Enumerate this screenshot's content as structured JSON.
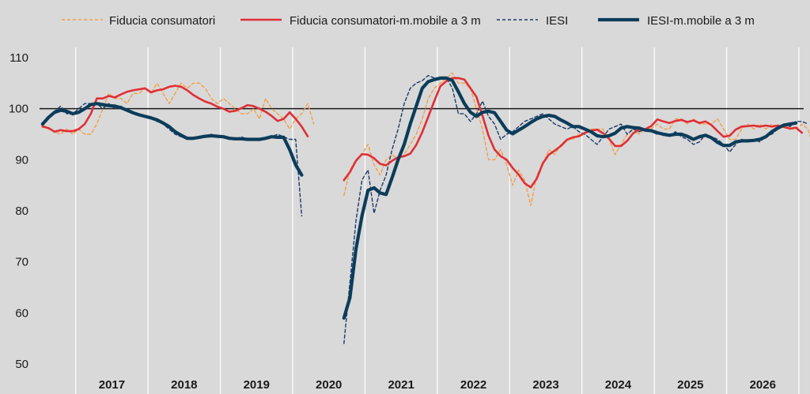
{
  "chart_data": {
    "type": "line",
    "title": "",
    "xlabel": "",
    "ylabel": "",
    "ylim": [
      50,
      112
    ],
    "yticks": [
      50,
      60,
      70,
      80,
      90,
      100,
      110
    ],
    "x_start": "2016-07",
    "x_end": "2026-12",
    "year_labels": [
      "2017",
      "2018",
      "2019",
      "2020",
      "2021",
      "2022",
      "2023",
      "2024",
      "2025",
      "2026"
    ],
    "reference_line": 100,
    "grid": "vertical year separators",
    "legend_position": "top",
    "colors": {
      "background": "#d9d9d9",
      "grid": "#ffffff",
      "fiducia": "#f0a04b",
      "fiducia_mm": "#e02f36",
      "iesi": "#1b3a6b",
      "iesi_mm": "#0c3c5a",
      "reference": "#1a1a1a"
    },
    "series": [
      {
        "name": "Fiducia consumatori",
        "style": "dashed-thin",
        "start": "2016-07",
        "values": [
          97,
          96,
          95.5,
          95,
          96,
          95,
          96,
          95,
          95,
          97,
          100,
          103,
          102,
          102,
          101,
          103,
          103,
          104,
          103,
          105,
          103,
          101,
          103,
          105,
          104,
          105,
          105,
          104,
          102,
          101,
          102,
          101,
          100,
          99,
          99,
          100,
          98,
          102,
          100,
          99,
          98,
          96,
          98,
          99,
          101,
          97,
          null,
          null,
          null,
          null,
          83,
          88,
          90,
          91,
          93,
          89,
          87,
          90,
          91,
          90,
          91,
          93,
          95,
          98,
          102,
          104,
          105,
          106,
          107,
          105,
          105,
          104,
          100,
          96,
          90,
          90,
          92,
          89,
          85,
          88,
          86,
          81,
          87,
          89,
          92,
          91,
          93,
          94,
          94,
          95,
          95,
          96,
          96,
          96,
          94,
          91,
          93,
          95,
          96,
          95,
          96,
          96,
          97,
          96,
          96,
          98,
          98,
          97,
          98,
          97,
          97,
          97,
          98,
          96,
          94,
          94,
          96,
          97,
          96,
          97,
          96,
          97,
          96,
          97,
          96,
          96,
          97,
          96,
          92
        ]
      },
      {
        "name": "Fiducia consumatori-m.mobile a 3 m",
        "style": "solid-medium",
        "start": "2016-07",
        "values": [
          96.5,
          96.2,
          95.5,
          95.8,
          95.6,
          95.6,
          96,
          97,
          99,
          102,
          102,
          102.5,
          102.2,
          102.8,
          103.3,
          103.6,
          103.8,
          104,
          103.2,
          103.6,
          103.8,
          104.3,
          104.5,
          104.3,
          103.6,
          102.7,
          102,
          101.4,
          101,
          100.4,
          100,
          99.4,
          99.6,
          100.1,
          100.7,
          100.5,
          100,
          99.4,
          98.6,
          97.6,
          98,
          99.3,
          98,
          96.5,
          94.6,
          null,
          null,
          null,
          null,
          null,
          86,
          87.6,
          89.8,
          91.1,
          91,
          90.3,
          89.2,
          88.9,
          89.8,
          90.5,
          90.7,
          91.2,
          92.9,
          95.4,
          98.4,
          101.5,
          104.4,
          105.4,
          106,
          106,
          105.7,
          104,
          102.3,
          98.6,
          94.7,
          92,
          90.7,
          90,
          88.4,
          87.1,
          85.4,
          84.6,
          86.3,
          89.3,
          91,
          91.8,
          92.7,
          93.9,
          94.4,
          94.6,
          95.3,
          95.7,
          95.9,
          95.2,
          94.1,
          92.7,
          92.7,
          93.7,
          95.2,
          95.9,
          96,
          96.6,
          97.9,
          97.5,
          97.2,
          97.6,
          97.8,
          97.4,
          97.7,
          97.2,
          97.5,
          96.8,
          95.6,
          94.5,
          94.7,
          95.9,
          96.5,
          96.6,
          96.7,
          96.5,
          96.7,
          96.5,
          96.7,
          96.4,
          96.1,
          96.3,
          95.3
        ]
      },
      {
        "name": "IESI",
        "style": "dashed-thin",
        "start": "2016-07",
        "values": [
          97,
          98.5,
          99.5,
          100.5,
          99,
          99,
          100,
          101,
          101,
          101,
          100,
          101,
          100,
          100.5,
          99.5,
          99,
          99,
          98.5,
          98,
          97.5,
          97,
          96,
          95,
          94.5,
          94,
          94,
          94.5,
          94.5,
          95,
          94.5,
          94.5,
          94,
          94,
          94.5,
          94,
          94,
          94,
          94,
          94.5,
          95,
          94.5,
          94,
          94,
          79,
          null,
          null,
          null,
          null,
          null,
          null,
          54,
          66,
          78,
          86,
          88,
          79.5,
          84,
          87,
          92,
          96,
          101,
          104,
          105,
          105.5,
          106.5,
          106,
          106,
          106,
          104,
          99,
          99,
          97.5,
          99,
          101.5,
          98.5,
          97,
          94,
          95,
          95.5,
          96.5,
          97.5,
          98,
          98.5,
          99,
          98,
          97,
          96.5,
          96,
          96.5,
          95.5,
          95,
          94,
          93,
          94.5,
          96,
          96.5,
          97,
          95,
          96,
          95.5,
          96,
          95.5,
          95,
          95,
          94.5,
          95.5,
          94.5,
          94,
          93,
          93.5,
          95,
          94.5,
          94,
          93,
          91.5,
          93,
          94,
          93.5,
          94,
          93.5,
          94.5,
          95,
          96,
          97,
          96.5,
          97.5,
          97.5,
          97
        ]
      },
      {
        "name": "IESI-m.mobile a 3 m",
        "style": "solid-thick",
        "start": "2016-07",
        "values": [
          97,
          98.3,
          99.3,
          99.7,
          99.5,
          99,
          99.3,
          100,
          100.8,
          101,
          100.8,
          100.6,
          100.5,
          100.2,
          99.7,
          99.2,
          98.8,
          98.5,
          98.2,
          97.8,
          97.2,
          96.5,
          95.5,
          94.8,
          94.2,
          94.2,
          94.4,
          94.6,
          94.7,
          94.6,
          94.5,
          94.2,
          94.1,
          94.1,
          94,
          94,
          94,
          94.2,
          94.5,
          94.4,
          94.4,
          92,
          89,
          87,
          null,
          null,
          null,
          null,
          null,
          null,
          59,
          63,
          72.5,
          79,
          84,
          84.5,
          83.5,
          83.2,
          86.5,
          90,
          93,
          97,
          100.5,
          104,
          105.3,
          105.7,
          106,
          106,
          105.5,
          103.3,
          101,
          99.3,
          98.5,
          99.3,
          99.5,
          99.2,
          97.5,
          95.8,
          95.1,
          95.8,
          96.5,
          97.3,
          98,
          98.5,
          98.7,
          98.5,
          97.8,
          97.2,
          96.5,
          96.5,
          96,
          95.5,
          94.7,
          94.5,
          94.7,
          95.2,
          96.2,
          96.5,
          96.3,
          96.2,
          95.8,
          95.7,
          95.3,
          95,
          94.8,
          95,
          95,
          94.6,
          94,
          94.5,
          94.8,
          94.3,
          93.4,
          92.8,
          92.8,
          93.5,
          93.7,
          93.7,
          93.8,
          94,
          94.5,
          95.5,
          96.2,
          96.8,
          97,
          97.2
        ]
      }
    ]
  }
}
